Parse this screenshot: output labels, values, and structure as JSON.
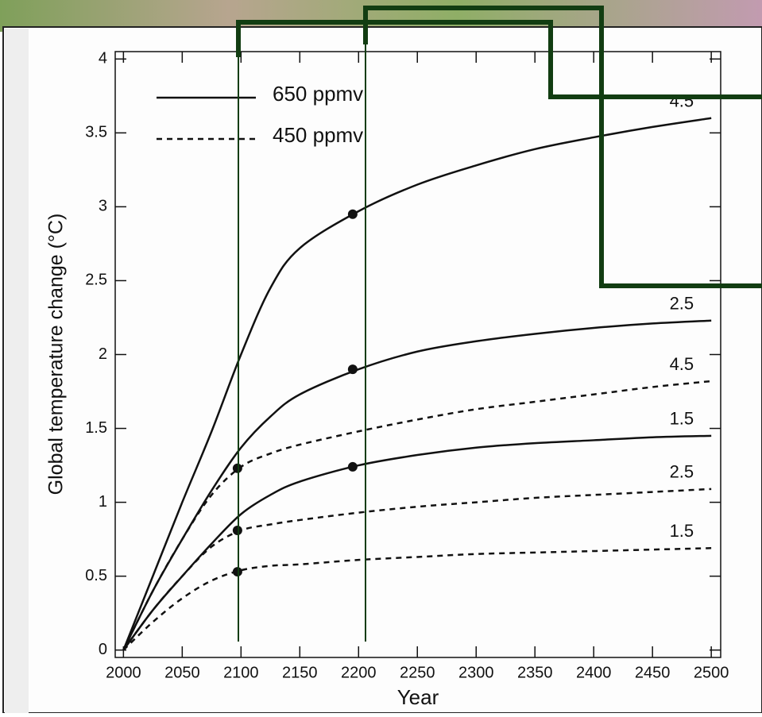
{
  "chart_data": {
    "type": "line",
    "xlabel": "Year",
    "ylabel": "Global temperature change (°C)",
    "xlim": [
      1993,
      2508
    ],
    "ylim": [
      -0.05,
      4.05
    ],
    "xticks": [
      2000,
      2050,
      2100,
      2150,
      2200,
      2250,
      2300,
      2350,
      2400,
      2450,
      2500
    ],
    "yticks": [
      0,
      0.5,
      1,
      1.5,
      2,
      2.5,
      3,
      3.5,
      4
    ],
    "legend": [
      {
        "name": "650 ppmv",
        "dashed": false
      },
      {
        "name": "450 ppmv",
        "dashed": true
      }
    ],
    "legend_position": "upper left",
    "x": [
      2000,
      2025,
      2050,
      2075,
      2100,
      2125,
      2150,
      2200,
      2250,
      2300,
      2350,
      2400,
      2450,
      2500
    ],
    "series": [
      {
        "name": "4.5",
        "legend": 0,
        "color": "#111111",
        "values": [
          0,
          0.5,
          1.0,
          1.48,
          2.0,
          2.45,
          2.72,
          2.97,
          3.15,
          3.28,
          3.39,
          3.47,
          3.54,
          3.6
        ]
      },
      {
        "name": "2.5",
        "legend": 0,
        "color": "#111111",
        "values": [
          0,
          0.4,
          0.75,
          1.08,
          1.37,
          1.58,
          1.73,
          1.9,
          2.02,
          2.09,
          2.14,
          2.18,
          2.21,
          2.23
        ]
      },
      {
        "name": "1.5",
        "legend": 0,
        "color": "#111111",
        "values": [
          0,
          0.27,
          0.5,
          0.72,
          0.92,
          1.05,
          1.14,
          1.25,
          1.32,
          1.37,
          1.4,
          1.42,
          1.44,
          1.45
        ]
      },
      {
        "name": "4.5",
        "legend": 1,
        "color": "#111111",
        "values": [
          0,
          0.4,
          0.75,
          1.05,
          1.24,
          1.33,
          1.39,
          1.48,
          1.56,
          1.63,
          1.68,
          1.73,
          1.78,
          1.82
        ]
      },
      {
        "name": "2.5",
        "legend": 1,
        "color": "#111111",
        "values": [
          0,
          0.27,
          0.5,
          0.7,
          0.81,
          0.85,
          0.88,
          0.93,
          0.97,
          1.0,
          1.03,
          1.05,
          1.07,
          1.09
        ]
      },
      {
        "name": "1.5",
        "legend": 1,
        "color": "#111111",
        "values": [
          0,
          0.19,
          0.35,
          0.47,
          0.54,
          0.57,
          0.58,
          0.61,
          0.63,
          0.65,
          0.66,
          0.67,
          0.68,
          0.69
        ]
      }
    ],
    "points": {
      "x": [
        2097,
        2097,
        2097,
        2195,
        2195,
        2195
      ],
      "y": [
        1.23,
        0.81,
        0.53,
        2.95,
        1.9,
        1.24
      ]
    }
  }
}
